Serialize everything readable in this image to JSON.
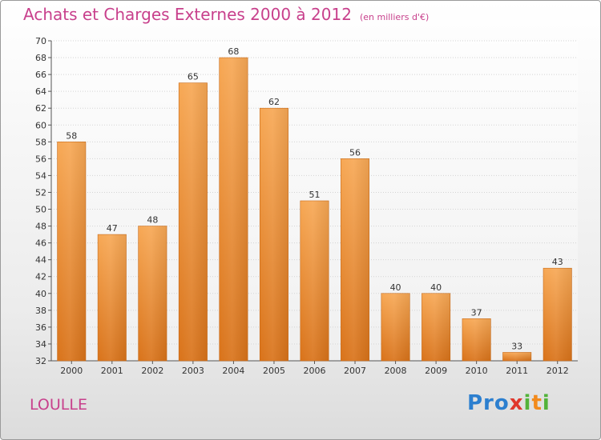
{
  "header": {
    "title": "Achats et Charges Externes 2000 à 2012",
    "unit": "(en milliers d'€)"
  },
  "footer": {
    "city": "LOULLE",
    "logo": "Proxiti"
  },
  "colors": {
    "bar_top": "#f7a855",
    "bar_bottom": "#d9731a",
    "title": "#c8408c",
    "grid": "#d4d4d4"
  },
  "chart_data": {
    "type": "bar",
    "title": "Achats et Charges Externes 2000 à 2012",
    "subtitle": "(en milliers d'€)",
    "xlabel": "",
    "ylabel": "",
    "categories": [
      "2000",
      "2001",
      "2002",
      "2003",
      "2004",
      "2005",
      "2006",
      "2007",
      "2008",
      "2009",
      "2010",
      "2011",
      "2012"
    ],
    "values": [
      58,
      47,
      48,
      65,
      68,
      62,
      51,
      56,
      40,
      40,
      37,
      33,
      43
    ],
    "ylim": [
      32,
      70
    ],
    "ytick_step": 2,
    "grid": true,
    "legend": "none"
  }
}
